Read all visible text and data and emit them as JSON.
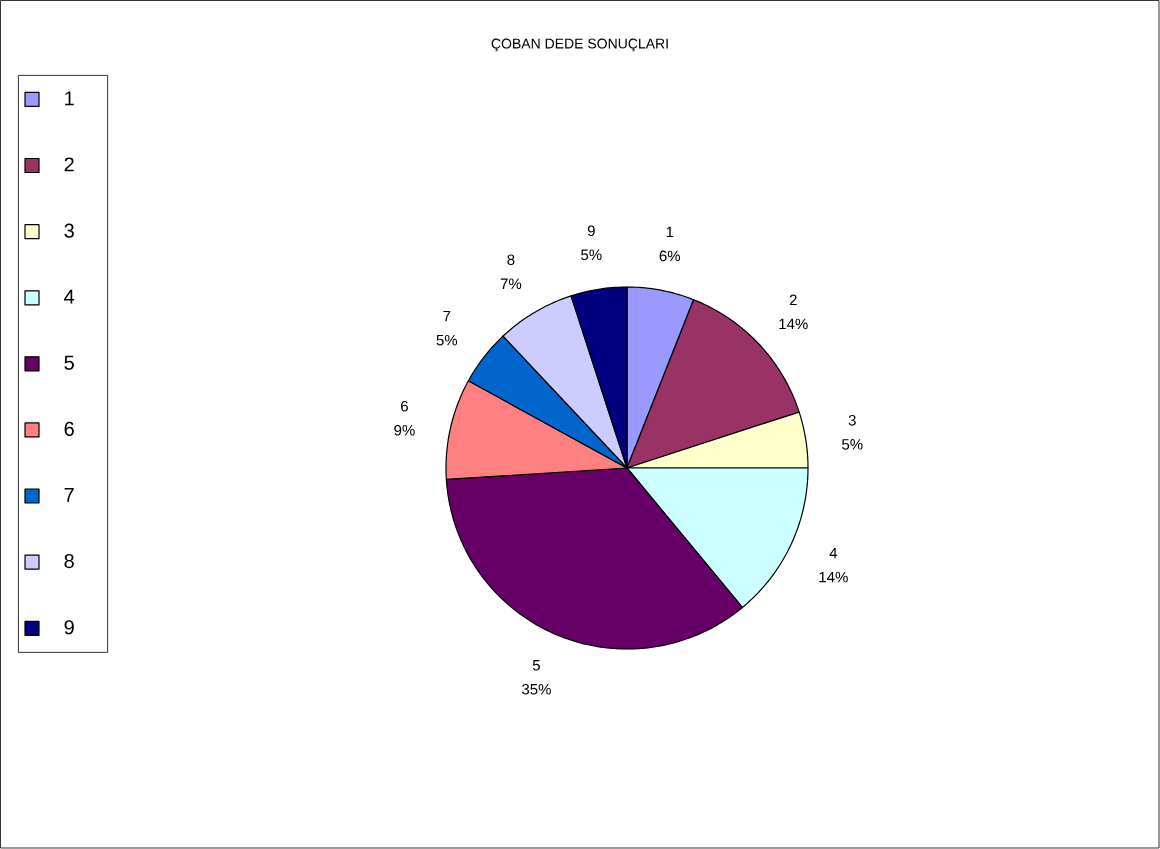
{
  "chart_data": {
    "type": "pie",
    "title": "ÇOBAN DEDE SONUÇLARI",
    "categories": [
      "1",
      "2",
      "3",
      "4",
      "5",
      "6",
      "7",
      "8",
      "9"
    ],
    "values": [
      6,
      14,
      5,
      14,
      35,
      9,
      5,
      7,
      5
    ],
    "value_labels": [
      "6%",
      "14%",
      "5%",
      "14%",
      "35%",
      "9%",
      "5%",
      "7%",
      "5%"
    ],
    "colors": [
      "#9999ff",
      "#993366",
      "#ffffcc",
      "#ccffff",
      "#660066",
      "#ff8080",
      "#0066cc",
      "#ccccff",
      "#000080"
    ],
    "legend": "left"
  }
}
